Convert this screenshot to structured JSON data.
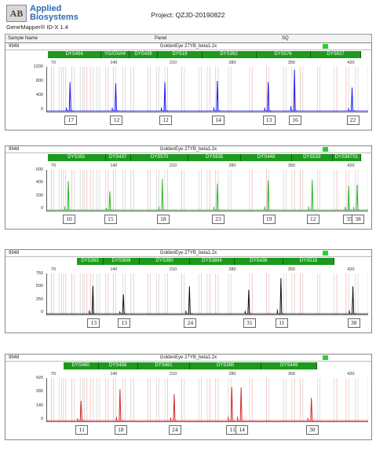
{
  "logo": {
    "line1": "Applied",
    "line2": "Biosystems",
    "mark": "AB"
  },
  "software": "GeneMapper® ID-X 1.4",
  "project": "Project: QZJD-20190822",
  "header": {
    "sample_name": "Sample Name",
    "panel": "Panel",
    "sq": "SQ"
  },
  "panels": [
    {
      "sample": "9948",
      "kit": "GoldenEye 27YB_beta1.2x",
      "color": "#1a1aee",
      "loci": [
        "DYS456",
        "YGATAH4",
        "DYS439",
        "DYS19",
        "DYS392",
        "DYS576",
        "DYS627"
      ],
      "bp": [
        "70",
        "140",
        "210",
        "280",
        "350",
        "420"
      ],
      "y": [
        "1200",
        "800",
        "400",
        "0"
      ],
      "alleles": [
        "17",
        "12",
        "12",
        "14",
        "13",
        "16",
        "22"
      ]
    },
    {
      "sample": "9948",
      "kit": "GoldenEye 27YB_beta1.2x",
      "color": "#2eb52e",
      "loci": [
        "DYS391",
        "DYS437",
        "DYS570",
        "DYS635",
        "DYS448",
        "DYS533",
        "DYS387S1"
      ],
      "bp": [
        "70",
        "140",
        "210",
        "280",
        "350",
        "420"
      ],
      "y": [
        "600",
        "400",
        "200",
        "0"
      ],
      "alleles": [
        "10",
        "15",
        "18",
        "23",
        "19",
        "12",
        "35",
        "38"
      ]
    },
    {
      "sample": "9948",
      "kit": "GoldenEye 27YB_beta1.2x",
      "color": "#111111",
      "loci": [
        "DYS393",
        "DYS389I",
        "DYS390",
        "DYS389II",
        "DYS438",
        "DYS518"
      ],
      "bp": [
        "70",
        "140",
        "210",
        "280",
        "350",
        "420"
      ],
      "y": [
        "750",
        "500",
        "250",
        "0"
      ],
      "alleles": [
        "13",
        "13",
        "24",
        "31",
        "11",
        "38"
      ]
    },
    {
      "sample": "9948",
      "kit": "GoldenEye 27YB_beta1.2x",
      "color": "#d22a2a",
      "loci": [
        "DYS460",
        "DYS458",
        "DYS481",
        "DYS385",
        "DYS449"
      ],
      "bp": [
        "70",
        "140",
        "210",
        "280",
        "350",
        "420"
      ],
      "y": [
        "420",
        "280",
        "140",
        "0"
      ],
      "alleles": [
        "11",
        "18",
        "24",
        "11",
        "14",
        "30"
      ]
    }
  ]
}
